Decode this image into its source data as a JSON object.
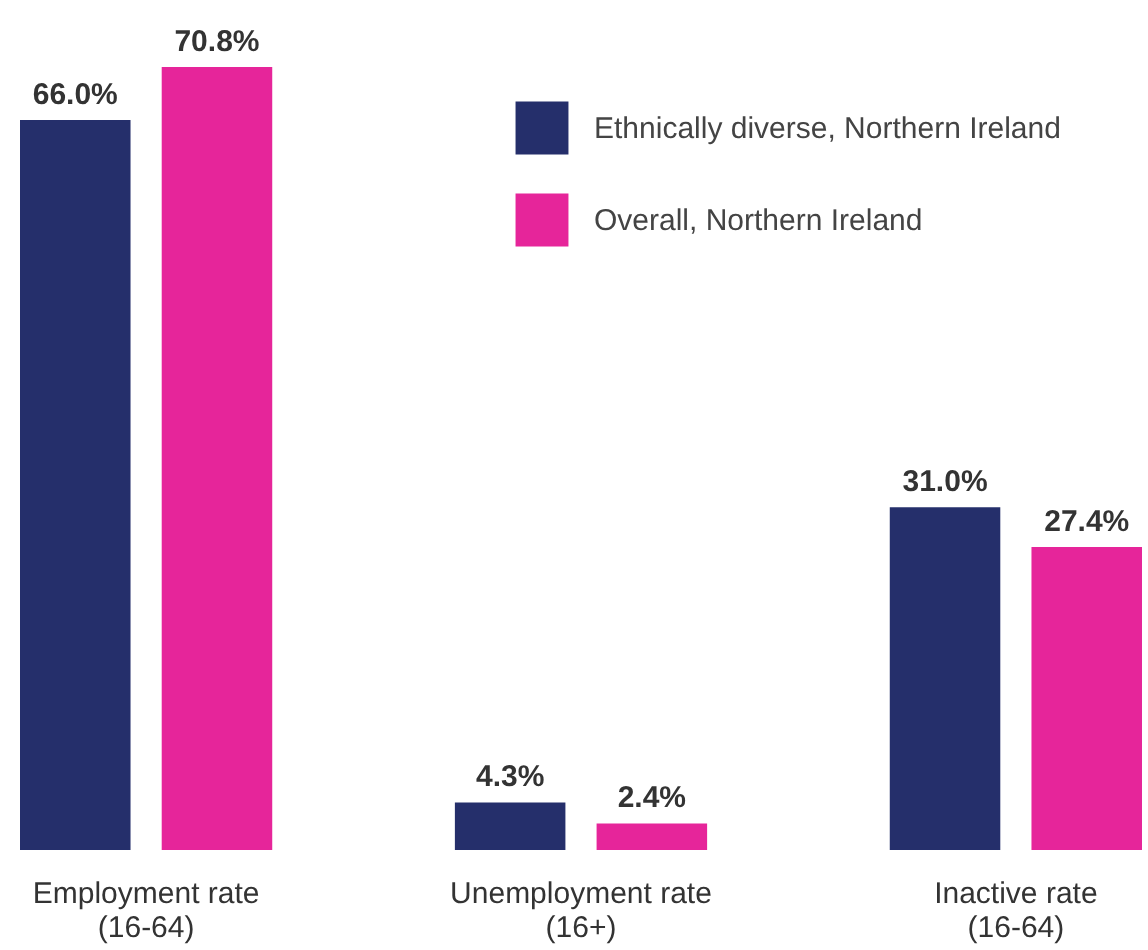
{
  "chart_data": {
    "type": "bar",
    "categories": [
      "Employment rate (16-64)",
      "Unemployment rate (16+)",
      "Inactive rate (16-64)"
    ],
    "series": [
      {
        "name": "Ethnically diverse, Northern Ireland",
        "color": "#252f6b",
        "values": [
          66.0,
          4.3,
          31.0
        ],
        "value_labels": [
          "66.0%",
          "4.3%",
          "31.0%"
        ]
      },
      {
        "name": "Overall, Northern Ireland",
        "color": "#e6259a",
        "values": [
          70.8,
          2.4,
          27.4
        ],
        "value_labels": [
          "70.8%",
          "2.4%",
          "27.4%"
        ]
      }
    ],
    "legend": "top right"
  }
}
